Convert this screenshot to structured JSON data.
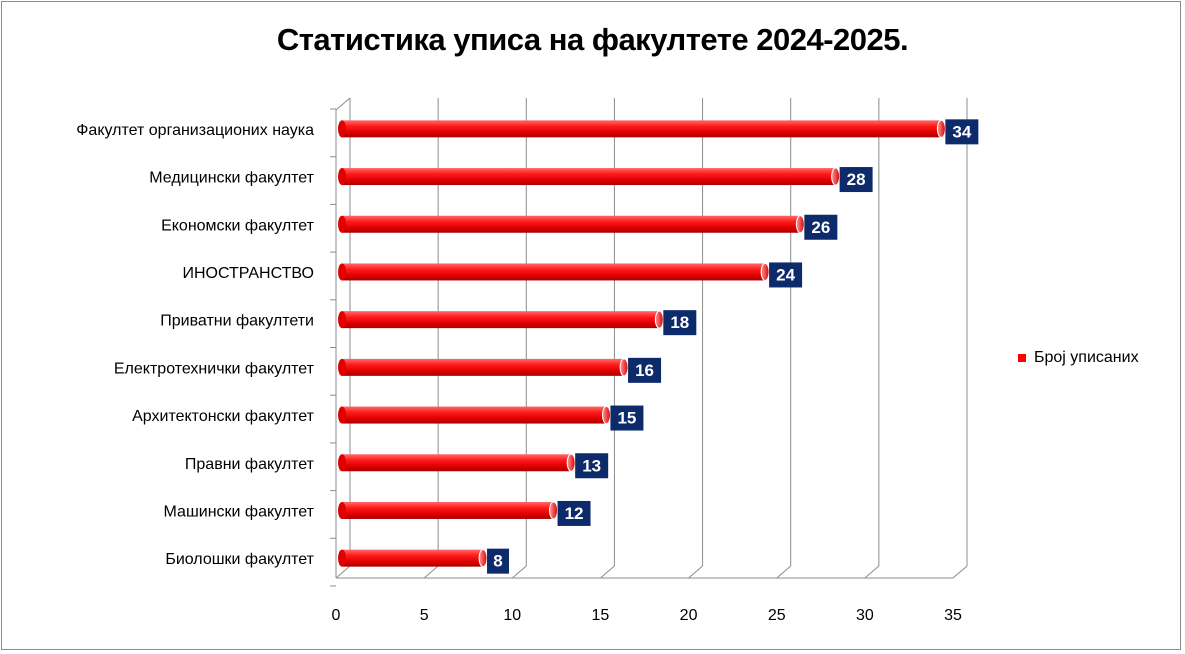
{
  "chart_data": {
    "type": "bar",
    "orientation": "horizontal",
    "title": "Статистика уписа на факултете 2024-2025.",
    "categories": [
      "Факултет организационих наука",
      "Медицински факултет",
      "Економски факултет",
      "ИНОСТРАНСТВО",
      "Приватни факултети",
      "Електротехнички факултет",
      "Архитектонски факултет",
      "Правни факултет",
      "Машински факултет",
      "Биолошки факултет"
    ],
    "series": [
      {
        "name": "Број уписаних",
        "values": [
          34,
          28,
          26,
          24,
          18,
          16,
          15,
          13,
          12,
          8
        ],
        "color": "#ff0000"
      }
    ],
    "xlim": [
      0,
      35
    ],
    "xticks": [
      "0",
      "5",
      "10",
      "15",
      "20",
      "25",
      "30",
      "35"
    ],
    "grid": true,
    "legend": "right",
    "label_bg_color": "#0d2a6b"
  }
}
